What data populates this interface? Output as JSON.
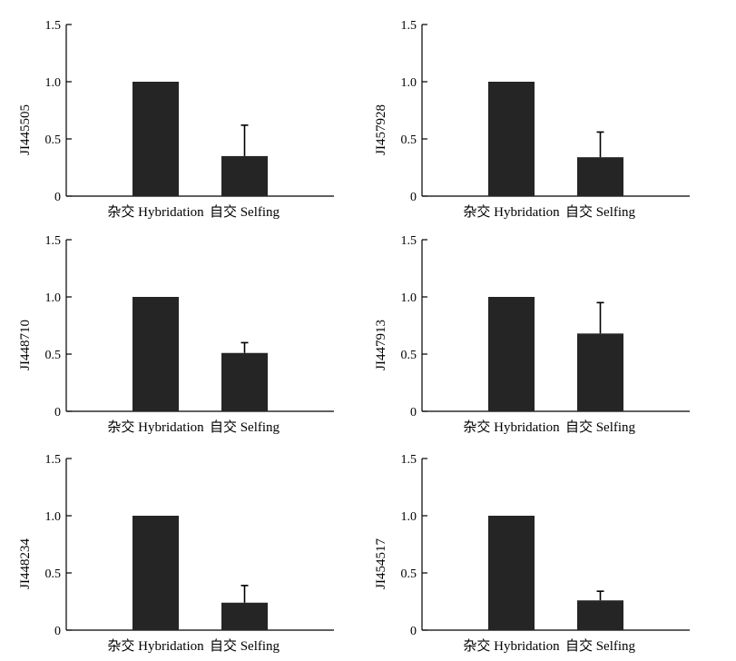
{
  "chart_data": [
    {
      "type": "bar",
      "ylabel": "JI445505",
      "categories": [
        "杂交 Hybridation",
        "自交 Selfing"
      ],
      "values": [
        1.0,
        0.35
      ],
      "error_upper": [
        0.0,
        0.27
      ],
      "ylim": [
        0,
        1.5
      ],
      "yticks": [
        "0",
        "0.5",
        "1.0",
        "1.5"
      ],
      "grid": false,
      "bar_color": "#252525"
    },
    {
      "type": "bar",
      "ylabel": "JI457928",
      "categories": [
        "杂交 Hybridation",
        "自交 Selfing"
      ],
      "values": [
        1.0,
        0.34
      ],
      "error_upper": [
        0.0,
        0.22
      ],
      "ylim": [
        0,
        1.5
      ],
      "yticks": [
        "0",
        "0.5",
        "1.0",
        "1.5"
      ],
      "grid": false,
      "bar_color": "#252525"
    },
    {
      "type": "bar",
      "ylabel": "JI448710",
      "categories": [
        "杂交 Hybridation",
        "自交 Selfing"
      ],
      "values": [
        1.0,
        0.51
      ],
      "error_upper": [
        0.0,
        0.09
      ],
      "ylim": [
        0,
        1.5
      ],
      "yticks": [
        "0",
        "0.5",
        "1.0",
        "1.5"
      ],
      "grid": false,
      "bar_color": "#252525"
    },
    {
      "type": "bar",
      "ylabel": "JI447913",
      "categories": [
        "杂交 Hybridation",
        "自交 Selfing"
      ],
      "values": [
        1.0,
        0.68
      ],
      "error_upper": [
        0.0,
        0.27
      ],
      "ylim": [
        0,
        1.5
      ],
      "yticks": [
        "0",
        "0.5",
        "1.0",
        "1.5"
      ],
      "grid": false,
      "bar_color": "#252525"
    },
    {
      "type": "bar",
      "ylabel": "JI448234",
      "categories": [
        "杂交 Hybridation",
        "自交 Selfing"
      ],
      "values": [
        1.0,
        0.24
      ],
      "error_upper": [
        0.0,
        0.15
      ],
      "ylim": [
        0,
        1.5
      ],
      "yticks": [
        "0",
        "0.5",
        "1.0",
        "1.5"
      ],
      "grid": false,
      "bar_color": "#252525"
    },
    {
      "type": "bar",
      "ylabel": "JI454517",
      "categories": [
        "杂交 Hybridation",
        "自交 Selfing"
      ],
      "values": [
        1.0,
        0.26
      ],
      "error_upper": [
        0.0,
        0.08
      ],
      "ylim": [
        0,
        1.5
      ],
      "yticks": [
        "0",
        "0.5",
        "1.0",
        "1.5"
      ],
      "grid": false,
      "bar_color": "#252525"
    }
  ]
}
